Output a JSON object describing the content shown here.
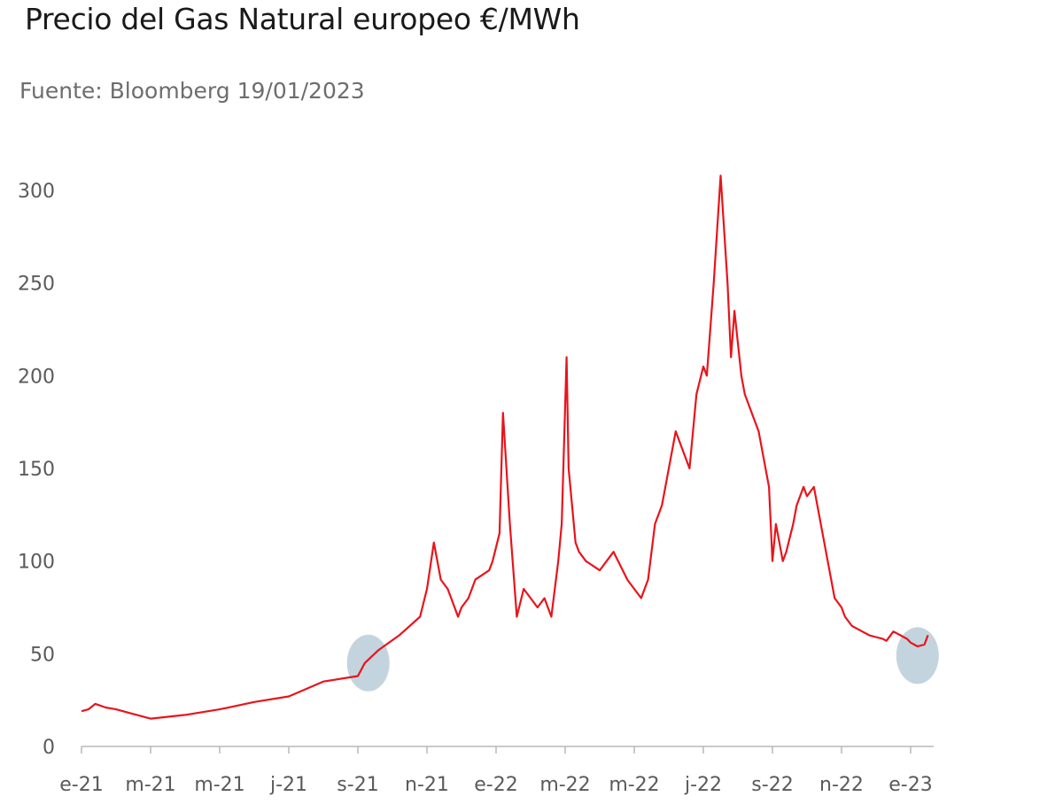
{
  "chart_data": {
    "type": "line",
    "title": "Precio del Gas Natural europeo €/MWh",
    "subtitle": "Fuente: Bloomberg 19/01/2023",
    "xlabel": "",
    "ylabel": "",
    "ylim": [
      0,
      300
    ],
    "y_ticks": [
      0,
      50,
      100,
      150,
      200,
      250,
      300
    ],
    "x_ticks": [
      "e-21",
      "m-21",
      "m-21",
      "j-21",
      "s-21",
      "n-21",
      "e-22",
      "m-22",
      "m-22",
      "j-22",
      "s-22",
      "n-22",
      "e-23"
    ],
    "grid": false,
    "legend": "none",
    "line_color": "#e8141b",
    "highlight_color": "#b8cdd9",
    "series": [
      {
        "name": "",
        "x": [
          0.0,
          0.1,
          0.2,
          0.35,
          0.5,
          0.7,
          1.0,
          1.5,
          2.0,
          2.5,
          3.0,
          3.5,
          4.0,
          4.1,
          4.3,
          4.6,
          4.9,
          5.0,
          5.1,
          5.2,
          5.3,
          5.35,
          5.45,
          5.5,
          5.6,
          5.7,
          5.9,
          5.95,
          6.05,
          6.1,
          6.2,
          6.3,
          6.4,
          6.5,
          6.6,
          6.7,
          6.8,
          6.9,
          6.95,
          7.02,
          7.05,
          7.1,
          7.15,
          7.2,
          7.3,
          7.5,
          7.6,
          7.7,
          7.9,
          8.0,
          8.1,
          8.2,
          8.3,
          8.4,
          8.6,
          8.7,
          8.8,
          8.9,
          9.0,
          9.05,
          9.15,
          9.25,
          9.35,
          9.4,
          9.45,
          9.55,
          9.6,
          9.7,
          9.8,
          9.9,
          9.95,
          10.0,
          10.05,
          10.1,
          10.15,
          10.2,
          10.3,
          10.35,
          10.45,
          10.5,
          10.6,
          10.7,
          10.8,
          10.9,
          11.0,
          11.05,
          11.15,
          11.3,
          11.4,
          11.5,
          11.6,
          11.65,
          11.75,
          11.85,
          11.95,
          12.0,
          12.05,
          12.1,
          12.2,
          12.25
        ],
        "values": [
          19,
          20,
          23,
          21,
          20,
          18,
          15,
          17,
          20,
          24,
          27,
          35,
          38,
          45,
          52,
          60,
          70,
          85,
          110,
          90,
          85,
          80,
          70,
          75,
          80,
          90,
          95,
          100,
          115,
          180,
          120,
          70,
          85,
          80,
          75,
          80,
          70,
          100,
          120,
          210,
          150,
          130,
          110,
          105,
          100,
          95,
          100,
          105,
          90,
          85,
          80,
          90,
          120,
          130,
          170,
          160,
          150,
          190,
          205,
          200,
          250,
          308,
          250,
          210,
          235,
          200,
          190,
          180,
          170,
          150,
          140,
          100,
          120,
          110,
          100,
          105,
          120,
          130,
          140,
          135,
          140,
          120,
          100,
          80,
          75,
          70,
          65,
          62,
          60,
          59,
          58,
          57,
          62,
          60,
          58,
          56,
          55,
          54,
          55,
          60
        ]
      }
    ],
    "highlights": [
      {
        "x": 4.15,
        "y": 45
      },
      {
        "x": 12.1,
        "y": 49
      }
    ]
  }
}
